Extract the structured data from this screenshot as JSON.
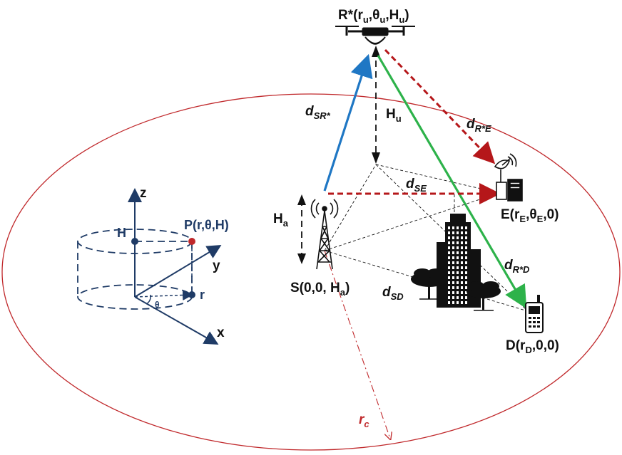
{
  "labels": {
    "relay": "R*(r",
    "relay_u1": "u",
    "relay_theta": ",θ",
    "relay_u2": "u",
    "relay_H": ",H",
    "relay_u3": "u",
    "relay_close": ")",
    "source": "S(0,0, H",
    "source_sub": "a",
    "source_close": ")",
    "eaves": "E(r",
    "eaves_sub1": "E",
    "eaves_theta": ",θ",
    "eaves_sub2": "E",
    "eaves_close": ",0)",
    "dest": "D(r",
    "dest_sub": "D",
    "dest_close": ",0,0)",
    "Hu": "H",
    "Hu_sub": "u",
    "Ha": "H",
    "Ha_sub": "a",
    "dSR": "d",
    "dSR_sub": "SR*",
    "dRE": "d",
    "dRE_sub": "R*E",
    "dSE": "d",
    "dSE_sub": "SE",
    "dRD": "d",
    "dRD_sub": "R*D",
    "dSD": "d",
    "dSD_sub": "SD",
    "rc": "r",
    "rc_sub": "c"
  },
  "coord_inset": {
    "z": "z",
    "y": "y",
    "x": "x",
    "H": "H",
    "r": "r",
    "theta": "θ",
    "point": "P(r,θ,H)"
  },
  "colors": {
    "ellipse": "#c0282b",
    "link_SR": "#1f77c4",
    "link_RD": "#2db24a",
    "eaves_link": "#b5171a",
    "inset": "#1f3b66",
    "point_P": "#c0282b"
  }
}
